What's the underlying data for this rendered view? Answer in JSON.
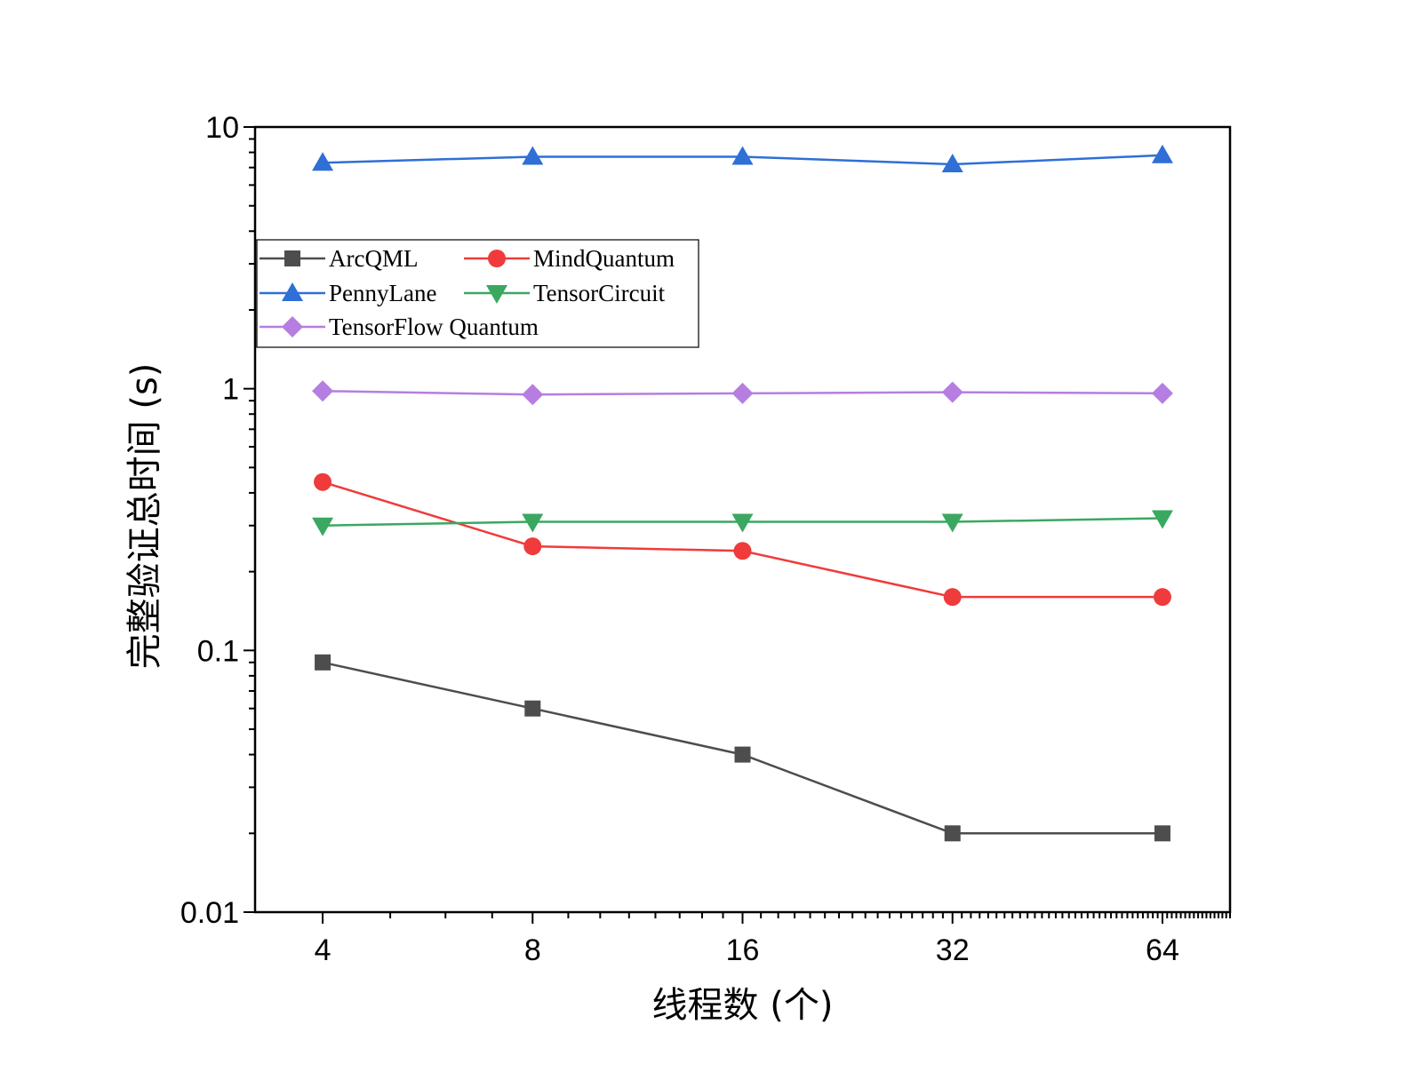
{
  "chart_data": {
    "type": "line",
    "xlabel": "线程数 (个)",
    "ylabel": "完整验证总时间 (s)",
    "x_scale": "log2",
    "y_scale": "log10",
    "categories": [
      "4",
      "8",
      "16",
      "32",
      "64"
    ],
    "x": [
      4,
      8,
      16,
      32,
      64
    ],
    "xlim": [
      3.2,
      80
    ],
    "ylim": [
      0.01,
      10
    ],
    "y_ticks": [
      {
        "value": 10,
        "label": "10"
      },
      {
        "value": 1,
        "label": "1"
      },
      {
        "value": 0.1,
        "label": "0.1"
      },
      {
        "value": 0.01,
        "label": "0.01"
      }
    ],
    "grid": false,
    "legend_placement": "upper-left",
    "series": [
      {
        "name": "ArcQML",
        "color": "#4d4d4d",
        "marker": "square",
        "values": [
          0.09,
          0.06,
          0.04,
          0.02,
          0.02
        ]
      },
      {
        "name": "MindQuantum",
        "color": "#ef3b3b",
        "marker": "circle",
        "values": [
          0.44,
          0.25,
          0.24,
          0.16,
          0.16
        ]
      },
      {
        "name": "PennyLane",
        "color": "#2f6fd6",
        "marker": "triangle-up",
        "values": [
          7.3,
          7.7,
          7.7,
          7.2,
          7.8
        ]
      },
      {
        "name": "TensorCircuit",
        "color": "#3aa860",
        "marker": "triangle-down",
        "values": [
          0.3,
          0.31,
          0.31,
          0.31,
          0.32
        ]
      },
      {
        "name": "TensorFlow Quantum",
        "color": "#b57ee0",
        "marker": "diamond",
        "values": [
          0.98,
          0.95,
          0.96,
          0.97,
          0.96
        ]
      }
    ]
  }
}
